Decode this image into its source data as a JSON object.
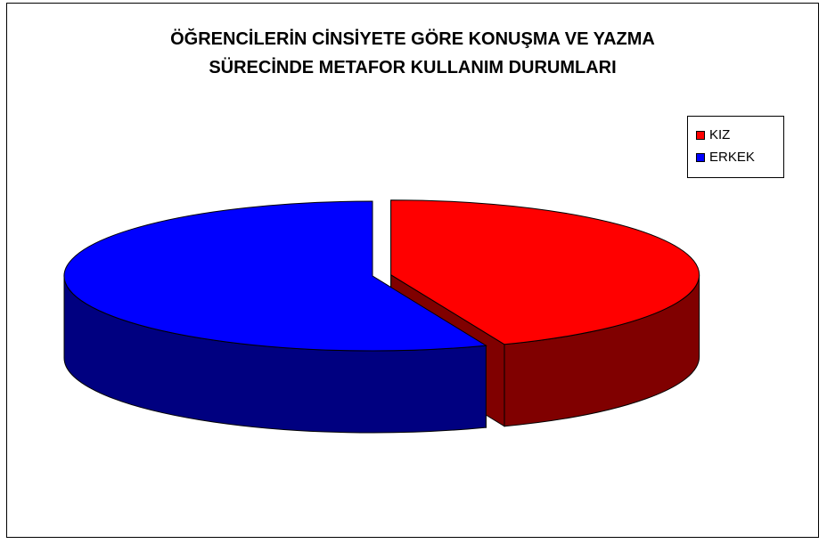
{
  "chart_data": {
    "type": "pie",
    "title": [
      "ÖĞRENCİLERİN CİNSİYETE GÖRE KONUŞMA VE YAZMA",
      "SÜRECİNDE METAFOR KULLANIM DURUMLARI"
    ],
    "slices": [
      {
        "label": "KIZ",
        "value": 44,
        "color": "#ff0000",
        "side_color": "#800000"
      },
      {
        "label": "ERKEK",
        "value": 56,
        "color": "#0000ff",
        "side_color": "#000080"
      }
    ],
    "exploded": "KIZ",
    "legend_position": "right",
    "view": "3d"
  }
}
